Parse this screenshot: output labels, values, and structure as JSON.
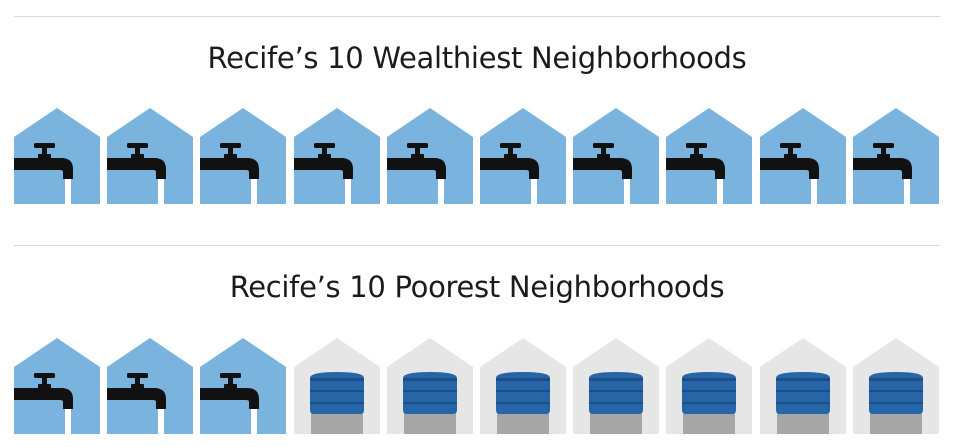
{
  "sections": [
    {
      "title": "Recife’s 10 Wealthiest Neighborhoods",
      "houses": [
        "tap",
        "tap",
        "tap",
        "tap",
        "tap",
        "tap",
        "tap",
        "tap",
        "tap",
        "tap"
      ]
    },
    {
      "title": "Recife’s 10 Poorest Neighborhoods",
      "houses": [
        "tap",
        "tap",
        "tap",
        "tank",
        "tank",
        "tank",
        "tank",
        "tank",
        "tank",
        "tank"
      ]
    }
  ],
  "icons": {
    "tap": "water-tap-icon",
    "tank": "water-tank-icon"
  },
  "colors": {
    "house_tap": "#7ab4de",
    "house_tank": "#e6e6e6",
    "tap": "#111111",
    "tank": "#2565a8",
    "tank_dark": "#1d4f86",
    "tank_stand": "#a6a6a6",
    "divider": "#d9d9d9"
  }
}
